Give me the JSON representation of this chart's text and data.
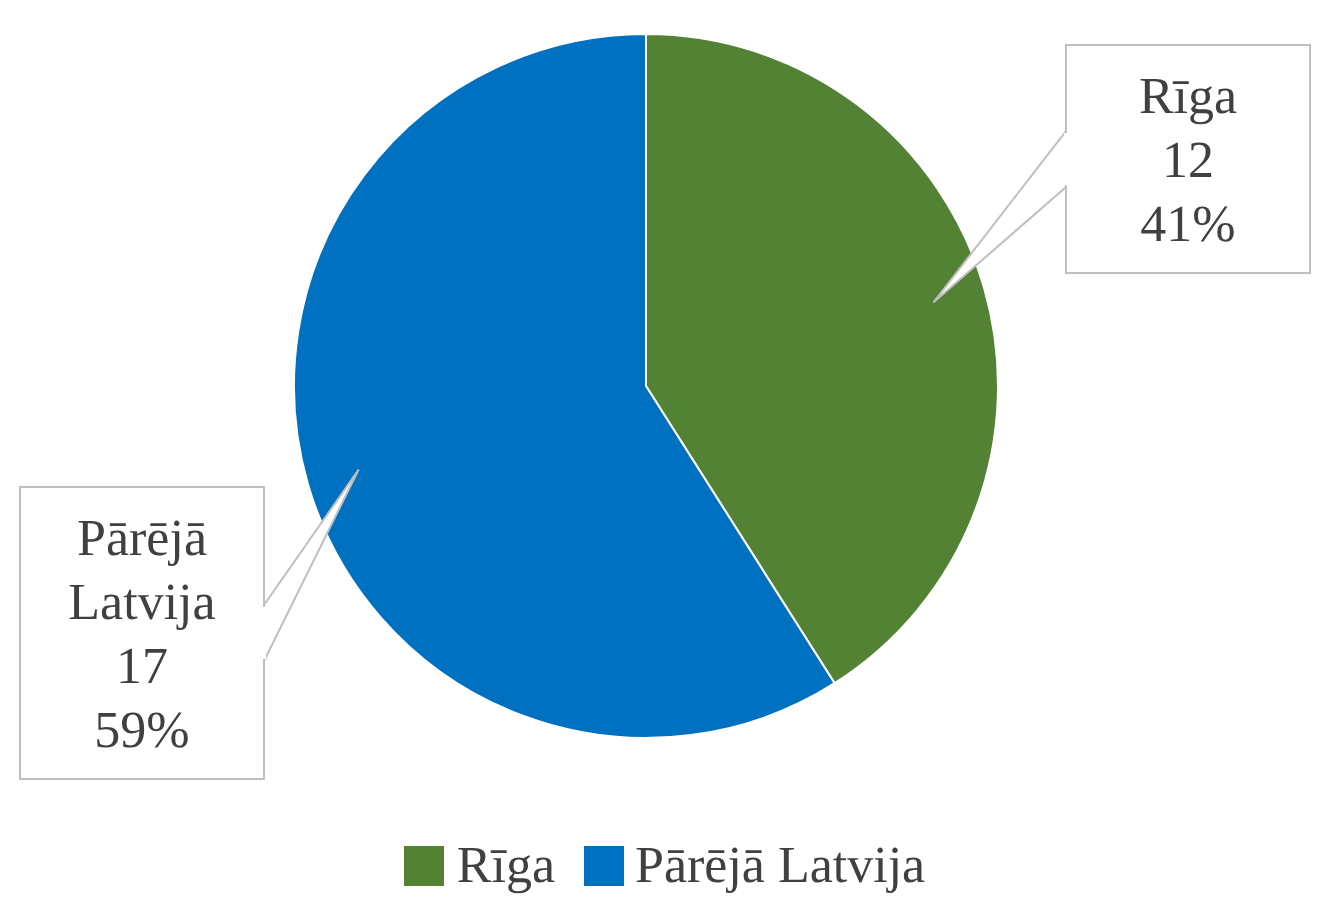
{
  "chart_data": {
    "type": "pie",
    "categories": [
      "Rīga",
      "Pārējā Latvija"
    ],
    "values": [
      41,
      59
    ],
    "colors": [
      "#548235",
      "#0070c0"
    ],
    "value_labels": [
      "12\n41%",
      "17\n59%"
    ],
    "legend": "bottom"
  }
}
